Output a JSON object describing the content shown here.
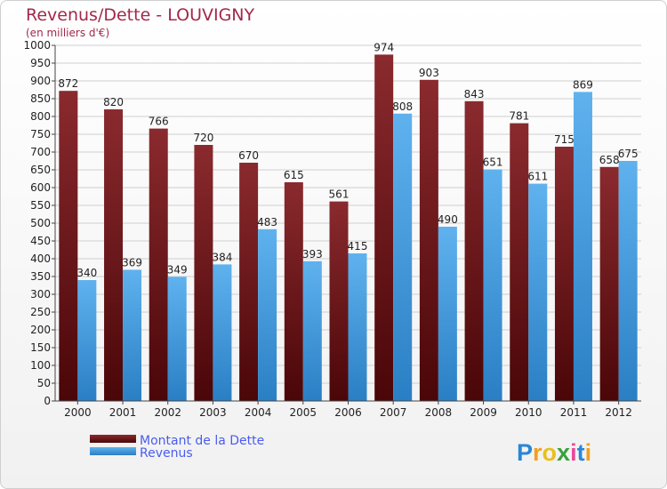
{
  "chart_data": {
    "type": "bar",
    "title": "Revenus/Dette - LOUVIGNY",
    "subtitle": "(en milliers d'€)",
    "categories": [
      "2000",
      "2001",
      "2002",
      "2003",
      "2004",
      "2005",
      "2006",
      "2007",
      "2008",
      "2009",
      "2010",
      "2011",
      "2012"
    ],
    "series": [
      {
        "name": "Montant de la Dette",
        "color": "#7a1a1e",
        "values": [
          872,
          820,
          766,
          720,
          670,
          615,
          561,
          974,
          903,
          843,
          781,
          715,
          658
        ]
      },
      {
        "name": "Revenus",
        "color": "#4da3e6",
        "values": [
          340,
          369,
          349,
          384,
          483,
          393,
          415,
          808,
          490,
          651,
          611,
          869,
          675
        ]
      }
    ],
    "ylim": [
      0,
      1000
    ],
    "ytick_step": 50,
    "grid": true,
    "legend": "bottom-left"
  },
  "colors": {
    "title": "#a3284b",
    "legend_text": "#4a5cf0",
    "axis_text": "#222222"
  },
  "logo": {
    "text": "Proxiti"
  }
}
